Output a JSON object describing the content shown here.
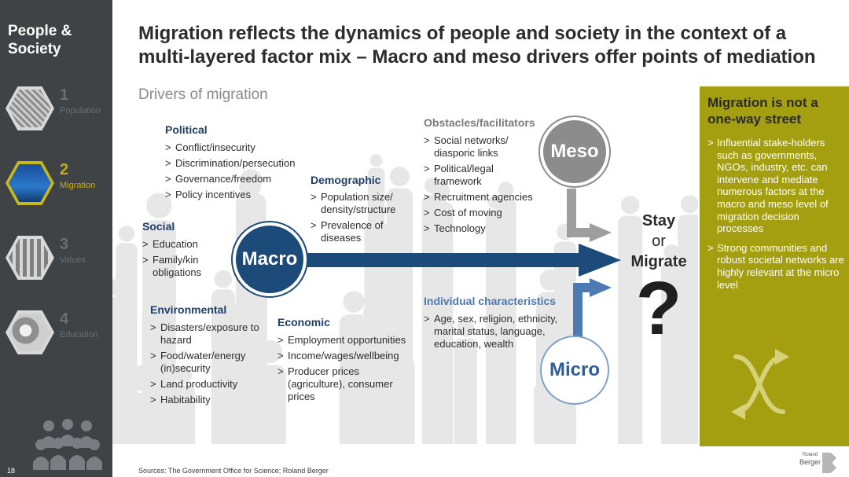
{
  "sidebar": {
    "title": "People & Society",
    "items": [
      {
        "num": "1",
        "label": "Population",
        "active": false
      },
      {
        "num": "2",
        "label": "Migration",
        "active": true
      },
      {
        "num": "3",
        "label": "Values",
        "active": false
      },
      {
        "num": "4",
        "label": "Education",
        "active": false
      }
    ],
    "page_number": "18"
  },
  "header": {
    "headline": "Migration reflects the dynamics of people and society in the context of a multi-layered factor mix – Macro and meso drivers offer points of mediation",
    "subhead": "Drivers of migration"
  },
  "diagram": {
    "political": {
      "title": "Political",
      "items": [
        "Conflict/insecurity",
        "Discrimination/persecution",
        "Governance/freedom",
        "Policy incentives"
      ]
    },
    "social": {
      "title": "Social",
      "items": [
        "Education",
        "Family/kin obligations"
      ]
    },
    "demographic": {
      "title": "Demographic",
      "items": [
        "Population size/ density/structure",
        "Prevalence of diseases"
      ]
    },
    "environmental": {
      "title": "Environmental",
      "items": [
        "Disasters/exposure to hazard",
        "Food/water/energy (in)security",
        "Land productivity",
        "Habitability"
      ]
    },
    "economic": {
      "title": "Economic",
      "items": [
        "Employment opportunities",
        "Income/wages/wellbeing",
        "Producer prices (agriculture), consumer prices"
      ]
    },
    "obstacles": {
      "title": "Obstacles/facilitators",
      "items": [
        "Social networks/ diasporic links",
        "Political/legal framework",
        "Recruitment agencies",
        "Cost of moving",
        "Technology"
      ]
    },
    "individual": {
      "title": "Individual characteristics",
      "items": [
        "Age, sex, religion, ethnicity, marital status, language, education, wealth"
      ]
    },
    "macro_label": "Macro",
    "meso_label": "Meso",
    "micro_label": "Micro",
    "stay": "Stay",
    "or": "or",
    "migrate": "Migrate",
    "question": "?",
    "colors": {
      "macro": "#1d4b79",
      "meso": "#8c8c8c",
      "micro": "#4d7ab3",
      "panel": "#a39f10"
    }
  },
  "panel": {
    "title": "Migration is not a one-way street",
    "items": [
      "Influential stake-holders such as governments, NGOs, industry, etc. can intervene and mediate numerous factors at the macro and meso level of migration decision processes",
      "Strong communities and robust societal networks are highly relevant at the micro level"
    ]
  },
  "footer": {
    "sources": "Sources: The Government Office for Science; Roland Berger",
    "brand_small": "Roland",
    "brand_word": "Berger"
  }
}
